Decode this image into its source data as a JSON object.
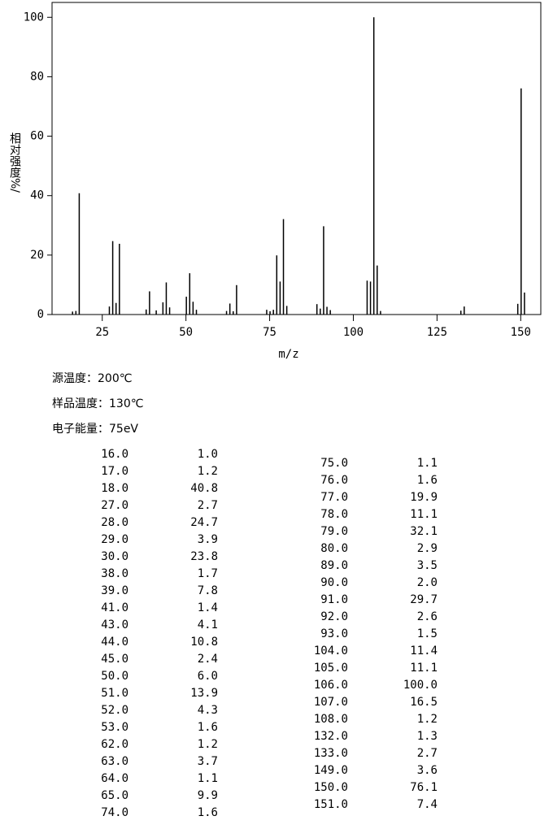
{
  "chart_data": {
    "type": "bar",
    "x_label": "m/z",
    "y_label": "相对强度%/",
    "color": "#000000",
    "xlim": [
      10,
      156
    ],
    "xticks": [
      25,
      50,
      75,
      100,
      125,
      150
    ],
    "ylim": [
      0,
      105
    ],
    "yticks": [
      0,
      20,
      40,
      60,
      80,
      100
    ],
    "x": [
      16,
      17,
      18,
      27,
      28,
      29,
      30,
      38,
      39,
      41,
      43,
      44,
      45,
      50,
      51,
      52,
      53,
      62,
      63,
      64,
      65,
      74,
      75,
      76,
      77,
      78,
      79,
      80,
      89,
      90,
      91,
      92,
      93,
      104,
      105,
      106,
      107,
      108,
      132,
      133,
      149,
      150,
      151
    ],
    "x_labels": [
      "16.0",
      "17.0",
      "18.0",
      "27.0",
      "28.0",
      "29.0",
      "30.0",
      "38.0",
      "39.0",
      "41.0",
      "43.0",
      "44.0",
      "45.0",
      "50.0",
      "51.0",
      "52.0",
      "53.0",
      "62.0",
      "63.0",
      "64.0",
      "65.0",
      "74.0",
      "75.0",
      "76.0",
      "77.0",
      "78.0",
      "79.0",
      "80.0",
      "89.0",
      "90.0",
      "91.0",
      "92.0",
      "93.0",
      "104.0",
      "105.0",
      "106.0",
      "107.0",
      "108.0",
      "132.0",
      "133.0",
      "149.0",
      "150.0",
      "151.0"
    ],
    "values": [
      1.0,
      1.2,
      40.8,
      2.7,
      24.7,
      3.9,
      23.8,
      1.7,
      7.8,
      1.4,
      4.1,
      10.8,
      2.4,
      6.0,
      13.9,
      4.3,
      1.6,
      1.2,
      3.7,
      1.1,
      9.9,
      1.6,
      1.1,
      1.6,
      19.9,
      11.1,
      32.1,
      2.9,
      3.5,
      2.0,
      29.7,
      2.6,
      1.5,
      11.4,
      11.1,
      100.0,
      16.5,
      1.2,
      1.3,
      2.7,
      3.6,
      76.1,
      7.4
    ],
    "value_labels": [
      "1.0",
      "1.2",
      "40.8",
      "2.7",
      "24.7",
      "3.9",
      "23.8",
      "1.7",
      "7.8",
      "1.4",
      "4.1",
      "10.8",
      "2.4",
      "6.0",
      "13.9",
      "4.3",
      "1.6",
      "1.2",
      "3.7",
      "1.1",
      "9.9",
      "1.6",
      "1.1",
      "1.6",
      "19.9",
      "11.1",
      "32.1",
      "2.9",
      "3.5",
      "2.0",
      "29.7",
      "2.6",
      "1.5",
      "11.4",
      "11.1",
      "100.0",
      "16.5",
      "1.2",
      "1.3",
      "2.7",
      "3.6",
      "76.1",
      "7.4"
    ]
  },
  "info": [
    "源温度：200℃",
    "样品温度：130℃",
    "电子能量：75eV"
  ]
}
